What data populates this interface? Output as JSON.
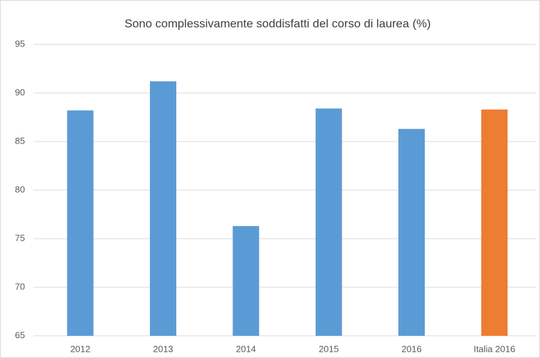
{
  "chart_data": {
    "type": "bar",
    "title": "Sono complessivamente soddisfatti del corso di laurea (%)",
    "categories": [
      "2012",
      "2013",
      "2014",
      "2015",
      "2016",
      "Italia 2016"
    ],
    "values": [
      88.2,
      91.2,
      76.3,
      88.4,
      86.3,
      88.3
    ],
    "colors": [
      "#5b9bd5",
      "#5b9bd5",
      "#5b9bd5",
      "#5b9bd5",
      "#5b9bd5",
      "#ed7d31"
    ],
    "ylim": [
      65,
      95
    ],
    "yticks": [
      65,
      70,
      75,
      80,
      85,
      90,
      95
    ],
    "grid": true
  }
}
